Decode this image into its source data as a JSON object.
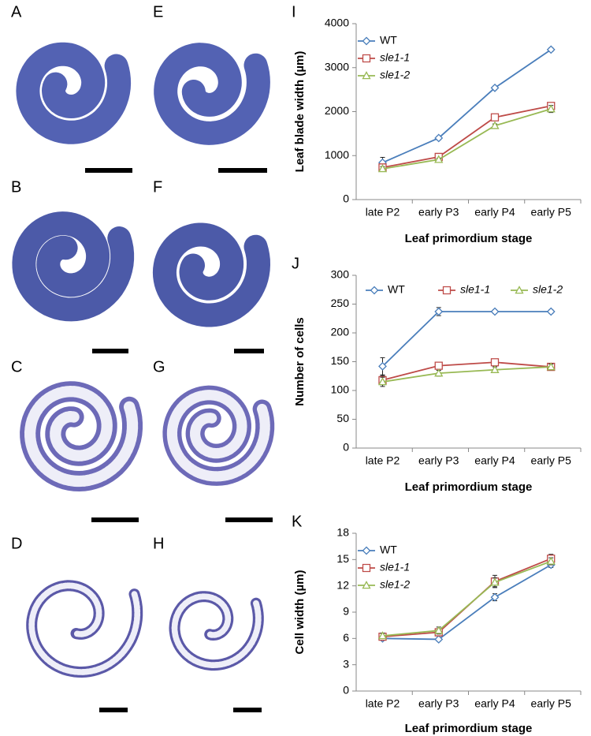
{
  "image_panels": [
    "A",
    "B",
    "C",
    "D",
    "E",
    "F",
    "G",
    "H"
  ],
  "chart_data": [
    {
      "type": "line",
      "panel": "I",
      "ylabel": "Leaf blade width (µm)",
      "xlabel": "Leaf primordium stage",
      "categories": [
        "late P2",
        "early P3",
        "early P4",
        "early P5"
      ],
      "ylim": [
        0,
        4000
      ],
      "yticks": [
        0,
        1000,
        2000,
        3000,
        4000
      ],
      "legend": "upper left",
      "series": [
        {
          "name": "WT",
          "color": "#4a7ebb",
          "marker": "diamond",
          "values": [
            840,
            1400,
            2540,
            3410
          ],
          "errors": [
            120,
            40,
            40,
            40
          ]
        },
        {
          "name": "sle1-1",
          "color": "#be4b48",
          "marker": "square",
          "values": [
            730,
            970,
            1870,
            2130
          ],
          "errors": [
            60,
            40,
            50,
            50
          ]
        },
        {
          "name": "sle1-2",
          "color": "#98b954",
          "marker": "triangle",
          "values": [
            700,
            910,
            1680,
            2060
          ],
          "errors": [
            50,
            30,
            40,
            80
          ]
        }
      ]
    },
    {
      "type": "line",
      "panel": "J",
      "ylabel": "Number of cells",
      "xlabel": "Leaf primordium stage",
      "categories": [
        "late P2",
        "early P3",
        "early P4",
        "early P5"
      ],
      "ylim": [
        0,
        300
      ],
      "yticks": [
        0,
        50,
        100,
        150,
        200,
        250,
        300
      ],
      "legend": "upper center",
      "series": [
        {
          "name": "WT",
          "color": "#4a7ebb",
          "marker": "diamond",
          "values": [
            142,
            237,
            237,
            237
          ],
          "errors": [
            15,
            7,
            3,
            3
          ]
        },
        {
          "name": "sle1-1",
          "color": "#be4b48",
          "marker": "square",
          "values": [
            118,
            143,
            149,
            141
          ],
          "errors": [
            8,
            5,
            5,
            5
          ]
        },
        {
          "name": "sle1-2",
          "color": "#98b954",
          "marker": "triangle",
          "values": [
            115,
            130,
            136,
            141
          ],
          "errors": [
            8,
            5,
            5,
            5
          ]
        }
      ]
    },
    {
      "type": "line",
      "panel": "K",
      "ylabel": "Cell width (µm)",
      "xlabel": "Leaf primordium stage",
      "categories": [
        "late P2",
        "early P3",
        "early P4",
        "early P5"
      ],
      "ylim": [
        0,
        18
      ],
      "yticks": [
        0,
        3,
        6,
        9,
        12,
        15,
        18
      ],
      "legend": "upper left",
      "series": [
        {
          "name": "WT",
          "color": "#4a7ebb",
          "marker": "diamond",
          "values": [
            6.0,
            5.9,
            10.7,
            14.4
          ],
          "errors": [
            0.2,
            0.2,
            0.4,
            0.3
          ]
        },
        {
          "name": "sle1-1",
          "color": "#be4b48",
          "marker": "square",
          "values": [
            6.2,
            6.7,
            12.5,
            15.1
          ],
          "errors": [
            0.3,
            0.4,
            0.7,
            0.5
          ]
        },
        {
          "name": "sle1-2",
          "color": "#98b954",
          "marker": "triangle",
          "values": [
            6.3,
            6.9,
            12.4,
            14.8
          ],
          "errors": [
            0.3,
            0.4,
            0.5,
            0.4
          ]
        }
      ]
    }
  ]
}
